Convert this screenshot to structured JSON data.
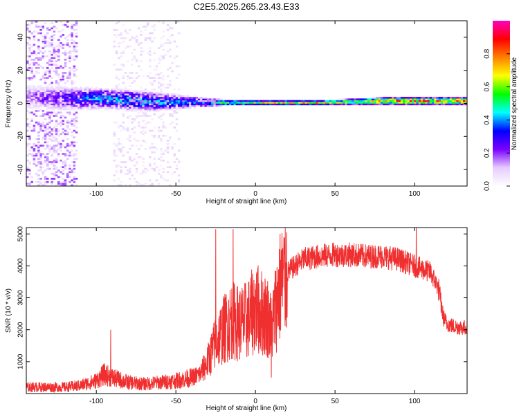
{
  "figure": {
    "title": "C2E5.2025.265.23.43.E33"
  },
  "chart_data": [
    {
      "type": "heatmap",
      "title": "C2E5.2025.265.23.43.E33",
      "xlabel": "Height of straight line (km)",
      "ylabel": "Frequency (Hz)",
      "xlim": [
        -144,
        133
      ],
      "ylim": [
        -50,
        50
      ],
      "xticks": [
        -100,
        -50,
        0,
        50,
        100
      ],
      "xtick_labels": [
        "-100",
        "-50",
        "0",
        "50",
        "100"
      ],
      "yticks": [
        -40,
        -20,
        0,
        20,
        40
      ],
      "ytick_labels": [
        "-40",
        "-20",
        "0",
        "20",
        "40"
      ],
      "colorbar": {
        "label": "Normalized spectral amplitude",
        "range": [
          0,
          1
        ],
        "ticks": [
          0.0,
          0.2,
          0.4,
          0.6,
          0.8
        ],
        "tick_labels": [
          "0.0",
          "0.2",
          "0.4",
          "0.6",
          "0.8"
        ],
        "colormap": [
          "#ffffff",
          "#e6ccff",
          "#7a00ff",
          "#0000ff",
          "#00ffff",
          "#00ff00",
          "#ffff00",
          "#ff8000",
          "#ff0000",
          "#ff00c0"
        ]
      },
      "band": {
        "x": [
          -144,
          -120,
          -100,
          -80,
          -60,
          -40,
          -30,
          -20,
          0,
          20,
          40,
          60,
          80,
          100,
          120,
          133
        ],
        "center_hz": [
          4,
          3,
          3,
          2,
          1,
          1,
          0.5,
          0.5,
          0.5,
          0.5,
          0.5,
          1,
          1.5,
          1.5,
          1.5,
          1.5
        ],
        "halfwidth_hz": [
          8,
          8,
          7,
          7,
          6,
          4,
          3,
          2,
          1.5,
          1.5,
          1.5,
          2,
          2.5,
          2.5,
          2.5,
          2.5
        ],
        "peak_amplitude": [
          0.2,
          0.3,
          0.45,
          0.45,
          0.45,
          0.4,
          0.45,
          0.6,
          0.7,
          0.75,
          0.75,
          0.65,
          0.8,
          0.85,
          0.85,
          0.85
        ]
      },
      "scatter_regions": [
        {
          "x": [
            -144,
            -112
          ],
          "amplitude": 0.15
        },
        {
          "x": [
            -90,
            -48
          ],
          "amplitude": 0.08
        }
      ]
    },
    {
      "type": "line",
      "xlabel": "Height of straight line (km)",
      "ylabel": "SNR (10 * v/v)",
      "xlim": [
        -144,
        133
      ],
      "ylim": [
        0,
        5200
      ],
      "xticks": [
        -100,
        -50,
        0,
        50,
        100
      ],
      "xtick_labels": [
        "-100",
        "-50",
        "0",
        "50",
        "100"
      ],
      "yticks": [
        1000,
        2000,
        3000,
        4000,
        5000
      ],
      "ytick_labels": [
        "1000",
        "2000",
        "3000",
        "4000",
        "5000"
      ],
      "color": "#f03030",
      "series": [
        {
          "name": "SNR",
          "x": [
            -144,
            -130,
            -120,
            -110,
            -100,
            -95,
            -90,
            -80,
            -70,
            -60,
            -50,
            -40,
            -35,
            -30,
            -25,
            -20,
            -15,
            -10,
            -5,
            0,
            5,
            8,
            10,
            15,
            20,
            25,
            30,
            40,
            50,
            60,
            70,
            80,
            90,
            95,
            100,
            105,
            110,
            115,
            118,
            120,
            125,
            133
          ],
          "values": [
            200,
            200,
            200,
            250,
            400,
            600,
            500,
            350,
            300,
            350,
            400,
            500,
            600,
            1000,
            1600,
            2000,
            2300,
            2200,
            2300,
            2700,
            2500,
            2400,
            2000,
            3300,
            3800,
            4000,
            4200,
            4300,
            4350,
            4350,
            4300,
            4300,
            4200,
            4100,
            4000,
            3900,
            3800,
            3300,
            2400,
            2200,
            2100,
            2050
          ]
        }
      ],
      "spikes": [
        {
          "x": -91,
          "value": 2000
        },
        {
          "x": -25,
          "value": 5150
        },
        {
          "x": -14,
          "value": 5150
        },
        {
          "x": 10,
          "value": 500
        },
        {
          "x": 101,
          "value": 5200
        }
      ]
    }
  ]
}
